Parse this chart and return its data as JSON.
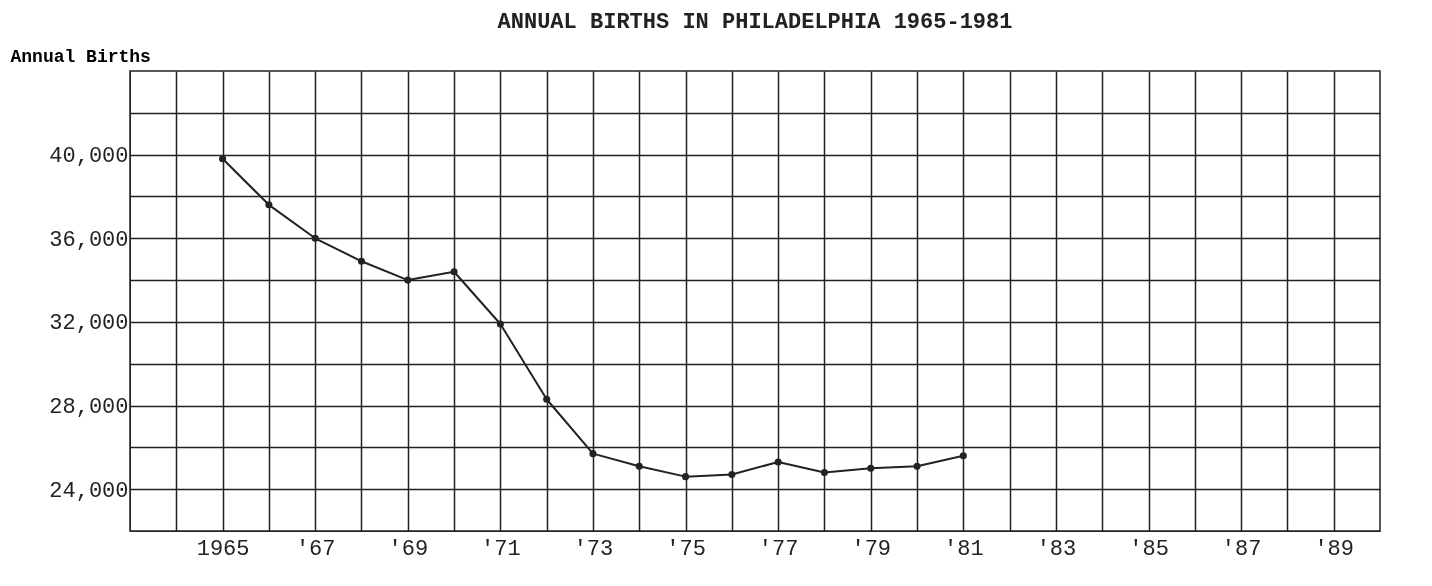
{
  "chart_data": {
    "type": "line",
    "title": "ANNUAL BIRTHS IN PHILADELPHIA  1965-1981",
    "ylabel": "Annual Births",
    "x": [
      1965,
      1966,
      1967,
      1968,
      1969,
      1970,
      1971,
      1972,
      1973,
      1974,
      1975,
      1976,
      1977,
      1978,
      1979,
      1980,
      1981
    ],
    "series": [
      {
        "color": "#222222",
        "values": [
          39800,
          37600,
          36000,
          34900,
          34000,
          34400,
          31900,
          28300,
          25700,
          25100,
          24600,
          24700,
          25300,
          24800,
          25000,
          25100,
          25600
        ]
      }
    ],
    "xlim": [
      1963,
      1990
    ],
    "xticks": [
      {
        "value": 1964,
        "label": null
      },
      {
        "value": 1965,
        "label": "1965"
      },
      {
        "value": 1966,
        "label": null
      },
      {
        "value": 1967,
        "label": "'67"
      },
      {
        "value": 1968,
        "label": null
      },
      {
        "value": 1969,
        "label": "'69"
      },
      {
        "value": 1970,
        "label": null
      },
      {
        "value": 1971,
        "label": "'71"
      },
      {
        "value": 1972,
        "label": null
      },
      {
        "value": 1973,
        "label": "'73"
      },
      {
        "value": 1974,
        "label": null
      },
      {
        "value": 1975,
        "label": "'75"
      },
      {
        "value": 1976,
        "label": null
      },
      {
        "value": 1977,
        "label": "'77"
      },
      {
        "value": 1978,
        "label": null
      },
      {
        "value": 1979,
        "label": "'79"
      },
      {
        "value": 1980,
        "label": null
      },
      {
        "value": 1981,
        "label": "'81"
      },
      {
        "value": 1982,
        "label": null
      },
      {
        "value": 1983,
        "label": "'83"
      },
      {
        "value": 1984,
        "label": null
      },
      {
        "value": 1985,
        "label": "'85"
      },
      {
        "value": 1986,
        "label": null
      },
      {
        "value": 1987,
        "label": "'87"
      },
      {
        "value": 1988,
        "label": null
      },
      {
        "value": 1989,
        "label": "'89"
      }
    ],
    "ylim": [
      22000,
      44000
    ],
    "yticks": [
      {
        "value": 24000,
        "label": "24,000"
      },
      {
        "value": 26000,
        "label": null
      },
      {
        "value": 28000,
        "label": "28,000"
      },
      {
        "value": 30000,
        "label": null
      },
      {
        "value": 32000,
        "label": "32,000"
      },
      {
        "value": 34000,
        "label": null
      },
      {
        "value": 36000,
        "label": "36,000"
      },
      {
        "value": 38000,
        "label": null
      },
      {
        "value": 40000,
        "label": "40,000"
      },
      {
        "value": 42000,
        "label": null
      }
    ],
    "grid": true,
    "marker": "circle",
    "line_style": "solid"
  }
}
